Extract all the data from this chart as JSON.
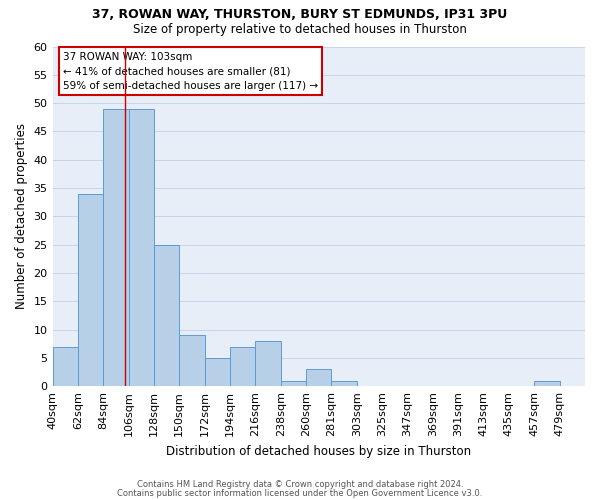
{
  "title1": "37, ROWAN WAY, THURSTON, BURY ST EDMUNDS, IP31 3PU",
  "title2": "Size of property relative to detached houses in Thurston",
  "xlabel": "Distribution of detached houses by size in Thurston",
  "ylabel": "Number of detached properties",
  "categories": [
    "40sqm",
    "62sqm",
    "84sqm",
    "106sqm",
    "128sqm",
    "150sqm",
    "172sqm",
    "194sqm",
    "216sqm",
    "238sqm",
    "260sqm",
    "281sqm",
    "303sqm",
    "325sqm",
    "347sqm",
    "369sqm",
    "391sqm",
    "413sqm",
    "435sqm",
    "457sqm",
    "479sqm"
  ],
  "values": [
    7,
    34,
    49,
    49,
    25,
    9,
    5,
    7,
    8,
    1,
    3,
    1,
    0,
    0,
    0,
    0,
    0,
    0,
    0,
    1,
    0
  ],
  "bar_color": "#b8cfe8",
  "bar_edge_color": "#5b9bd5",
  "grid_color": "#c8d4e8",
  "background_color": "#e8eef8",
  "annotation_text_line1": "37 ROWAN WAY: 103sqm",
  "annotation_text_line2": "← 41% of detached houses are smaller (81)",
  "annotation_text_line3": "59% of semi-detached houses are larger (117) →",
  "ylim": [
    0,
    60
  ],
  "yticks": [
    0,
    5,
    10,
    15,
    20,
    25,
    30,
    35,
    40,
    45,
    50,
    55,
    60
  ],
  "footnote1": "Contains HM Land Registry data © Crown copyright and database right 2024.",
  "footnote2": "Contains public sector information licensed under the Open Government Licence v3.0."
}
